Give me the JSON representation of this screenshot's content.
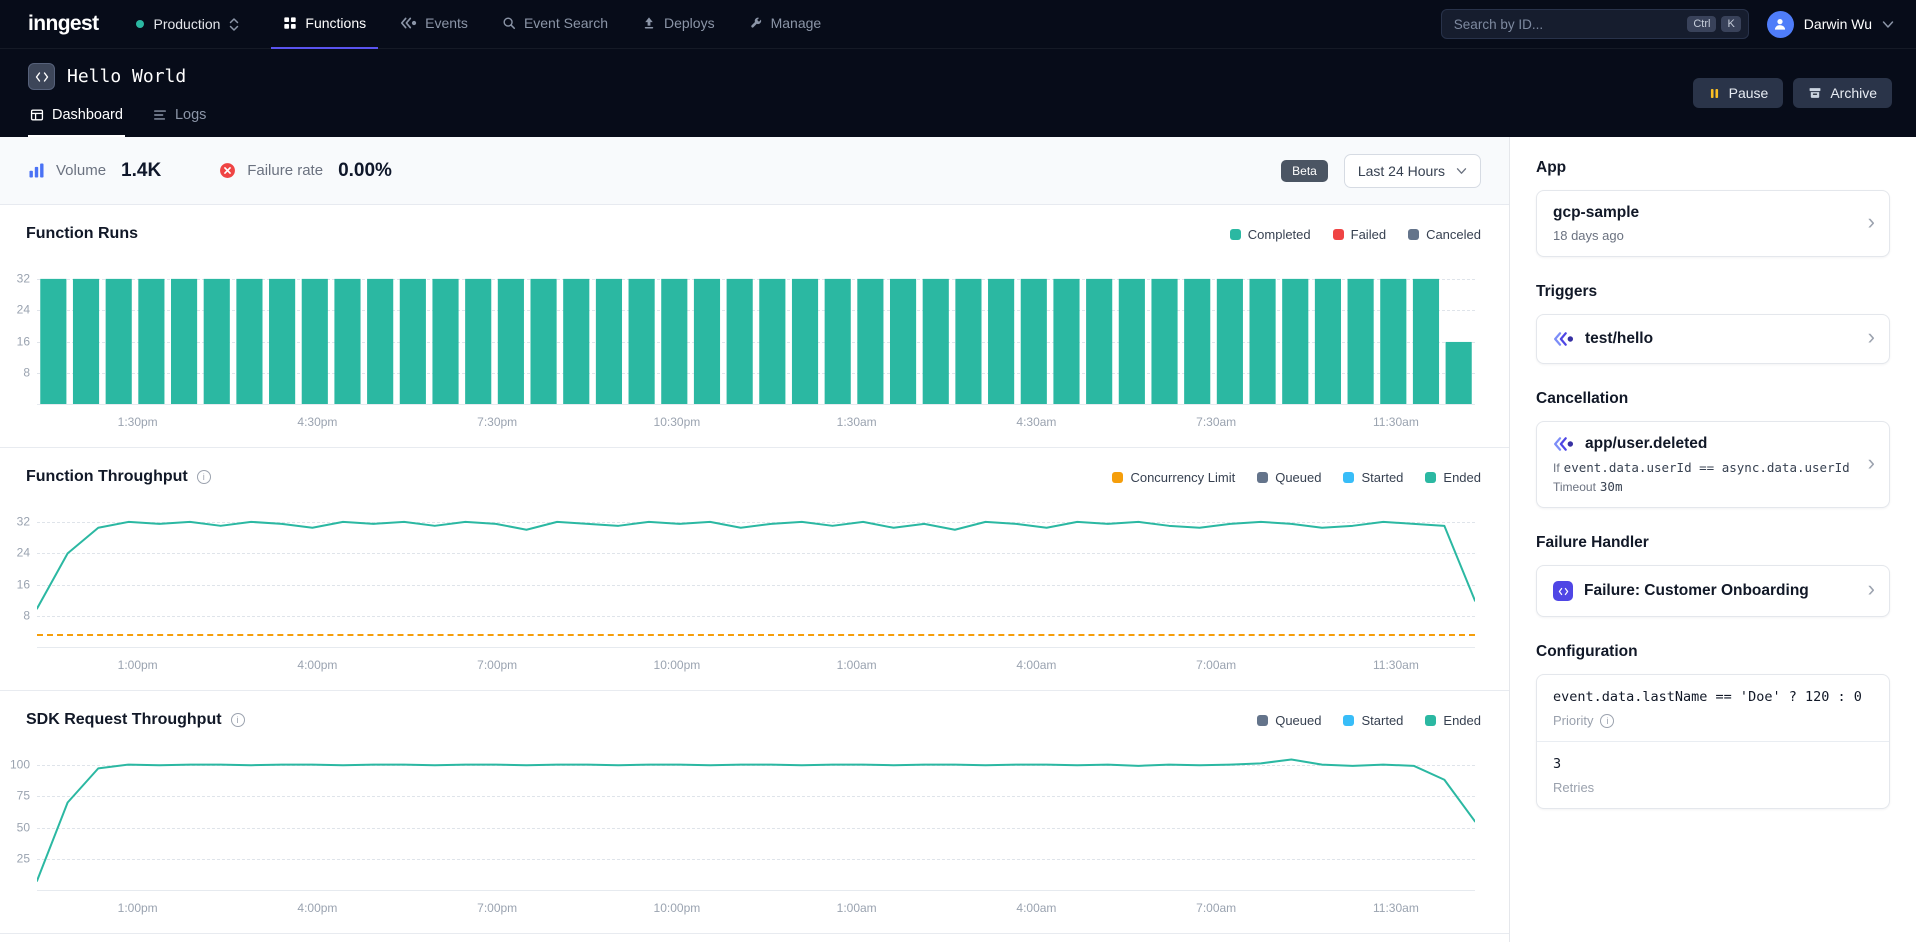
{
  "colors": {
    "accent": "#5a54f0",
    "teal": "#2bb8a2",
    "blue": "#38bdf8",
    "amber": "#f59e0b",
    "red": "#ef4444",
    "slate": "#64748b"
  },
  "nav": {
    "logo": "inngest",
    "env": {
      "label": "Production"
    },
    "tabs": [
      {
        "label": "Functions",
        "active": true
      },
      {
        "label": "Events",
        "active": false
      },
      {
        "label": "Event Search",
        "active": false
      },
      {
        "label": "Deploys",
        "active": false
      },
      {
        "label": "Manage",
        "active": false
      }
    ],
    "search": {
      "placeholder": "Search by ID...",
      "keys": [
        "Ctrl",
        "K"
      ]
    },
    "user": {
      "name": "Darwin Wu"
    }
  },
  "header": {
    "title": "Hello World",
    "tabs": [
      {
        "label": "Dashboard",
        "active": true
      },
      {
        "label": "Logs",
        "active": false
      }
    ],
    "actions": [
      {
        "label": "Pause"
      },
      {
        "label": "Archive"
      }
    ]
  },
  "stats": {
    "volume": {
      "label": "Volume",
      "value": "1.4K"
    },
    "failure_rate": {
      "label": "Failure rate",
      "value": "0.00%"
    },
    "beta_badge": "Beta",
    "time_range": "Last 24 Hours"
  },
  "charts": [
    {
      "title": "Function Runs",
      "type": "bar",
      "info": false,
      "legend": [
        {
          "label": "Completed",
          "color": "#2bb8a2"
        },
        {
          "label": "Failed",
          "color": "#ef4444"
        },
        {
          "label": "Canceled",
          "color": "#64748b"
        }
      ],
      "ymax": 34,
      "yticks": [
        8,
        16,
        24,
        32
      ],
      "xticks": [
        "1:30pm",
        "4:30pm",
        "7:30pm",
        "10:30pm",
        "1:30am",
        "4:30am",
        "7:30am",
        "11:30am"
      ],
      "bar_color": "#2bb8a2",
      "values": [
        32,
        32,
        32,
        32,
        32,
        32,
        32,
        32,
        32,
        32,
        32,
        32,
        32,
        32,
        32,
        32,
        32,
        32,
        32,
        32,
        32,
        32,
        32,
        32,
        32,
        32,
        32,
        32,
        32,
        32,
        32,
        32,
        32,
        32,
        32,
        32,
        32,
        32,
        32,
        32,
        32,
        32,
        32,
        16
      ]
    },
    {
      "title": "Function Throughput",
      "type": "line",
      "info": true,
      "legend": [
        {
          "label": "Concurrency Limit",
          "color": "#f59e0b"
        },
        {
          "label": "Queued",
          "color": "#64748b"
        },
        {
          "label": "Started",
          "color": "#38bdf8"
        },
        {
          "label": "Ended",
          "color": "#2bb8a2"
        }
      ],
      "ymax": 34,
      "yticks": [
        8,
        16,
        24,
        32
      ],
      "xticks": [
        "1:00pm",
        "4:00pm",
        "7:00pm",
        "10:00pm",
        "1:00am",
        "4:00am",
        "7:00am",
        "11:30am"
      ],
      "limit_line": {
        "label": "Concurrency Limit",
        "value": 3.5,
        "color": "#f59e0b"
      },
      "series": [
        {
          "name": "Ended",
          "color": "#2bb8a2",
          "values": [
            10,
            24,
            30.5,
            32,
            31.5,
            32,
            31,
            32,
            31.5,
            30.5,
            32,
            31.5,
            32,
            31,
            32,
            31.5,
            30,
            32,
            31.5,
            31,
            32,
            31.5,
            32,
            30.5,
            31.5,
            32,
            31,
            32,
            30.5,
            31.5,
            30,
            32,
            31.5,
            30.5,
            32,
            31.5,
            32,
            31,
            30.5,
            31.5,
            32,
            31.5,
            30.5,
            31,
            32,
            31.5,
            31,
            12
          ]
        }
      ]
    },
    {
      "title": "SDK Request Throughput",
      "type": "line",
      "info": true,
      "legend": [
        {
          "label": "Queued",
          "color": "#64748b"
        },
        {
          "label": "Started",
          "color": "#38bdf8"
        },
        {
          "label": "Ended",
          "color": "#2bb8a2"
        }
      ],
      "ymax": 106,
      "yticks": [
        25,
        50,
        75,
        100
      ],
      "xticks": [
        "1:00pm",
        "4:00pm",
        "7:00pm",
        "10:00pm",
        "1:00am",
        "4:00am",
        "7:00am",
        "11:30am"
      ],
      "series": [
        {
          "name": "Ended",
          "color": "#2bb8a2",
          "values": [
            8,
            70,
            97,
            100,
            99.5,
            100,
            100,
            99.5,
            100,
            100,
            99.5,
            100,
            100,
            99.5,
            100,
            100,
            99.5,
            100,
            100,
            99.5,
            100,
            100,
            99.5,
            100,
            100,
            99.5,
            100,
            100,
            99.5,
            100,
            100,
            99.5,
            100,
            100,
            99.5,
            100,
            99,
            100,
            99.5,
            100,
            101,
            104,
            100,
            99,
            100,
            99,
            88,
            55
          ]
        }
      ]
    }
  ],
  "sidebar": {
    "app": {
      "heading": "App",
      "name": "gcp-sample",
      "updated": "18 days ago"
    },
    "triggers": {
      "heading": "Triggers",
      "items": [
        {
          "name": "test/hello"
        }
      ]
    },
    "cancellation": {
      "heading": "Cancellation",
      "items": [
        {
          "name": "app/user.deleted",
          "condition_prefix": "If",
          "condition": "event.data.userId == async.data.userId",
          "timeout_label": "Timeout",
          "timeout": "30m"
        }
      ]
    },
    "failure_handler": {
      "heading": "Failure Handler",
      "name": "Failure: Customer Onboarding"
    },
    "configuration": {
      "heading": "Configuration",
      "priority_expression": "event.data.lastName == 'Doe' ? 120 : 0",
      "priority_label": "Priority",
      "retries_value": "3",
      "retries_label": "Retries"
    }
  }
}
